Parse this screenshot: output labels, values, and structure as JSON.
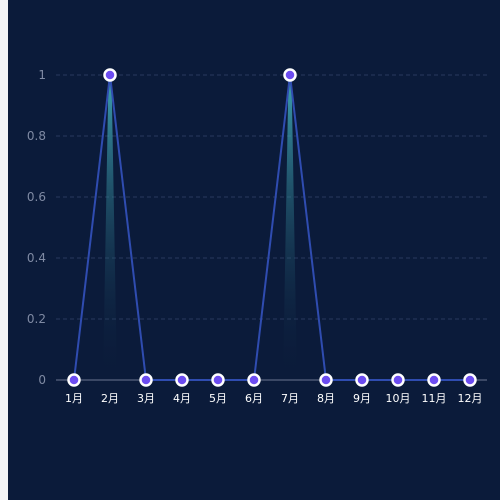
{
  "chart_data": {
    "type": "line",
    "title": "",
    "xlabel": "",
    "ylabel": "",
    "categories": [
      "1月",
      "2月",
      "3月",
      "4月",
      "5月",
      "6月",
      "7月",
      "8月",
      "9月",
      "10月",
      "11月",
      "12月"
    ],
    "series": [
      {
        "values": [
          0,
          1,
          0,
          0,
          0,
          0,
          1,
          0,
          0,
          0,
          0,
          0
        ]
      }
    ],
    "ylim": [
      0,
      1
    ],
    "yticks": [
      0,
      0.2,
      0.4,
      0.6,
      0.8,
      1
    ],
    "ytick_labels": [
      "0",
      "0.2",
      "0.4",
      "0.6",
      "0.8",
      "1"
    ],
    "grid": true,
    "grid_style": "dashed",
    "colors": {
      "background": "#0b1b3a",
      "line": "#2f4cb0",
      "marker_fill": "#6c4cf0",
      "marker_stroke": "#ffffff",
      "area_gradient_top": "#4fd0d8"
    }
  }
}
